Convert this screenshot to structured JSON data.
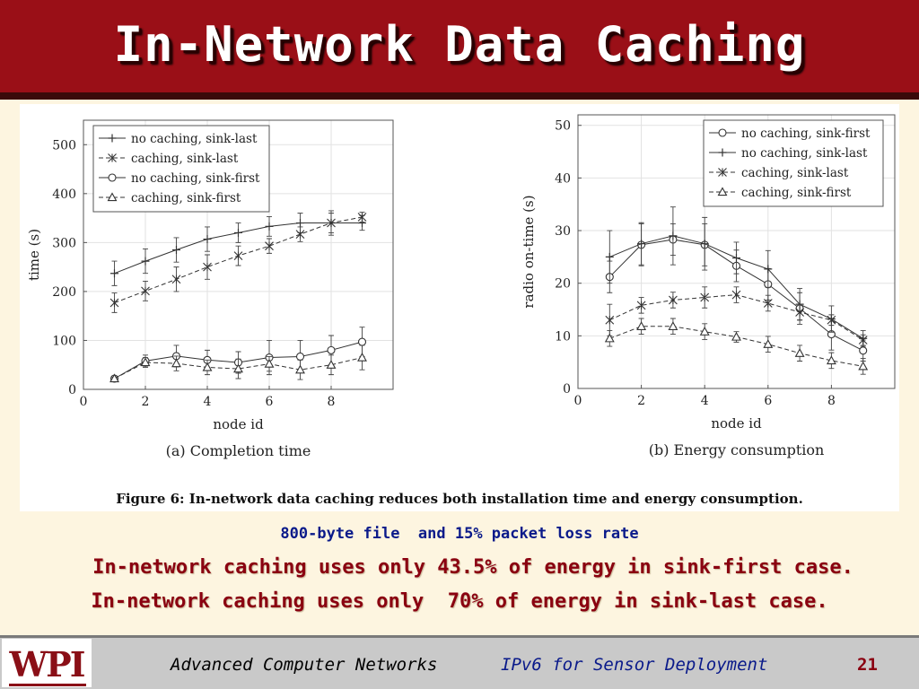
{
  "slide": {
    "title": "In-Network Data Caching",
    "colors": {
      "title_bar": "#9a0f17",
      "background": "#fdf5e0",
      "note_blue": "#0a1a8a",
      "note_red": "#8a0010"
    }
  },
  "figure": {
    "caption": "Figure 6: In-network data caching reduces both installation time and energy consumption."
  },
  "chart_data": [
    {
      "type": "line",
      "title": "(a) Completion time",
      "xlabel": "node id",
      "ylabel": "time (s)",
      "xlim": [
        0,
        10
      ],
      "ylim": [
        0,
        550
      ],
      "xticks": [
        0,
        2,
        4,
        6,
        8
      ],
      "yticks": [
        0,
        100,
        200,
        300,
        400,
        500
      ],
      "grid": true,
      "legend_position": "top-left",
      "series": [
        {
          "name": "no caching, sink-last",
          "marker": "plus",
          "dashed": false,
          "x": [
            1,
            2,
            3,
            4,
            5,
            6,
            7,
            8,
            9
          ],
          "y": [
            237,
            262,
            285,
            307,
            320,
            333,
            340,
            340,
            340
          ],
          "err": [
            25,
            25,
            25,
            25,
            20,
            20,
            20,
            25,
            15
          ]
        },
        {
          "name": "caching, sink-last",
          "marker": "x",
          "dashed": true,
          "x": [
            1,
            2,
            3,
            4,
            5,
            6,
            7,
            8,
            9
          ],
          "y": [
            177,
            201,
            225,
            250,
            273,
            293,
            317,
            340,
            352
          ],
          "err": [
            20,
            20,
            25,
            25,
            20,
            15,
            15,
            20,
            10
          ]
        },
        {
          "name": "no caching, sink-first",
          "marker": "circle",
          "dashed": false,
          "x": [
            1,
            2,
            3,
            4,
            5,
            6,
            7,
            8,
            9
          ],
          "y": [
            22,
            58,
            68,
            60,
            55,
            65,
            67,
            80,
            97
          ],
          "err": [
            3,
            12,
            22,
            20,
            22,
            35,
            33,
            30,
            30
          ]
        },
        {
          "name": "caching, sink-first",
          "marker": "triangle",
          "dashed": true,
          "x": [
            1,
            2,
            3,
            4,
            5,
            6,
            7,
            8,
            9
          ],
          "y": [
            22,
            55,
            53,
            45,
            42,
            52,
            40,
            50,
            65
          ],
          "err": [
            3,
            10,
            15,
            15,
            20,
            15,
            20,
            20,
            25
          ]
        }
      ]
    },
    {
      "type": "line",
      "title": "(b) Energy consumption",
      "xlabel": "node id",
      "ylabel": "radio on-time (s)",
      "xlim": [
        0,
        10
      ],
      "ylim": [
        0,
        52
      ],
      "xticks": [
        0,
        2,
        4,
        6,
        8
      ],
      "yticks": [
        0,
        10,
        20,
        30,
        40,
        50
      ],
      "grid": true,
      "legend_position": "top-right",
      "series": [
        {
          "name": "no caching, sink-first",
          "marker": "circle",
          "dashed": false,
          "x": [
            1,
            2,
            3,
            4,
            5,
            6,
            7,
            8,
            9
          ],
          "y": [
            21.2,
            27.3,
            28.3,
            27.3,
            23.3,
            19.8,
            15.2,
            10.3,
            7.2
          ],
          "err": [
            3,
            4,
            3,
            4,
            3,
            3,
            3,
            3,
            2
          ]
        },
        {
          "name": "no caching, sink-last",
          "marker": "plus",
          "dashed": false,
          "x": [
            1,
            2,
            3,
            4,
            5,
            6,
            7,
            8,
            9
          ],
          "y": [
            25,
            27.5,
            29,
            27.5,
            24.8,
            22.7,
            16,
            13.2,
            9.5
          ],
          "err": [
            5,
            4,
            5.5,
            5,
            3,
            3.5,
            3,
            2.5,
            1.5
          ]
        },
        {
          "name": "caching, sink-last",
          "marker": "x",
          "dashed": true,
          "x": [
            1,
            2,
            3,
            4,
            5,
            6,
            7,
            8,
            9
          ],
          "y": [
            13,
            15.8,
            16.8,
            17.3,
            17.8,
            16.2,
            14.5,
            13,
            9.2
          ],
          "err": [
            3,
            1.5,
            1.5,
            2,
            1.5,
            1.5,
            1.5,
            1,
            1
          ]
        },
        {
          "name": "caching, sink-first",
          "marker": "triangle",
          "dashed": true,
          "x": [
            1,
            2,
            3,
            4,
            5,
            6,
            7,
            8,
            9
          ],
          "y": [
            9.5,
            11.8,
            11.8,
            10.8,
            9.8,
            8.4,
            6.7,
            5.3,
            4.2
          ],
          "err": [
            1.5,
            1.5,
            1.5,
            1.5,
            1,
            1.5,
            1.5,
            1.5,
            1.5
          ]
        }
      ]
    }
  ],
  "notes": {
    "file_info": "800-byte file  and 15% packet loss rate",
    "sink_first": "In-network caching uses only 43.5% of energy in sink-first case.",
    "sink_last": "In-network caching uses only  70% of energy in sink-last case."
  },
  "footer": {
    "logo_text": "WPI",
    "course": "Advanced Computer Networks",
    "topic": "IPv6 for Sensor Deployment",
    "page": "21"
  }
}
